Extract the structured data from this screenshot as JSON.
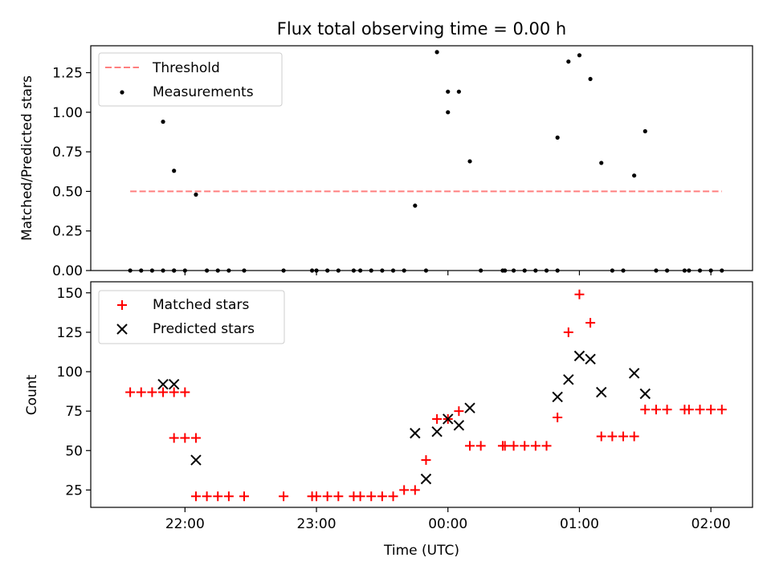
{
  "chart_data": [
    {
      "type": "scatter",
      "title": "Flux total observing time = 0.00 h",
      "xlabel": "",
      "ylabel": "Matched/Predicted stars",
      "ylim": [
        0,
        1.42
      ],
      "x_range": [
        "21:17",
        "02:19"
      ],
      "yticks": [
        "0.00",
        "0.25",
        "0.50",
        "0.75",
        "1.00",
        "1.25"
      ],
      "xticks": [
        "22:00",
        "23:00",
        "00:00",
        "01:00",
        "02:00"
      ],
      "x_ticks_at": [
        "22:00",
        "23:00",
        "00:00",
        "01:00",
        "02:00"
      ],
      "xtick_labels_visible": false,
      "grid": false,
      "legend_position": "upper left",
      "legend": [
        {
          "label": "Threshold",
          "style": "dashed line",
          "color": "#ff7f7f"
        },
        {
          "label": "Measurements",
          "style": "dot",
          "color": "#000000"
        }
      ],
      "series": [
        {
          "name": "Threshold",
          "kind": "line",
          "color": "#ff7f7f",
          "x": [
            "21:35",
            "02:05"
          ],
          "values": [
            0.5,
            0.5
          ]
        },
        {
          "name": "Measurements",
          "kind": "scatter",
          "color": "#000000",
          "points": [
            [
              "21:35",
              0.0
            ],
            [
              "21:40",
              0.0
            ],
            [
              "21:45",
              0.0
            ],
            [
              "21:50",
              0.0
            ],
            [
              "21:55",
              0.0
            ],
            [
              "21:50",
              0.94
            ],
            [
              "21:55",
              0.63
            ],
            [
              "21:55",
              0.0
            ],
            [
              "22:00",
              0.0
            ],
            [
              "22:05",
              0.48
            ],
            [
              "22:10",
              0.0
            ],
            [
              "22:15",
              0.0
            ],
            [
              "22:20",
              0.0
            ],
            [
              "22:27",
              0.0
            ],
            [
              "22:45",
              0.0
            ],
            [
              "22:58",
              0.0
            ],
            [
              "23:00",
              0.0
            ],
            [
              "23:05",
              0.0
            ],
            [
              "23:10",
              0.0
            ],
            [
              "23:17",
              0.0
            ],
            [
              "23:20",
              0.0
            ],
            [
              "23:25",
              0.0
            ],
            [
              "23:30",
              0.0
            ],
            [
              "23:35",
              0.0
            ],
            [
              "23:40",
              0.0
            ],
            [
              "23:45",
              0.41
            ],
            [
              "23:50",
              0.0
            ],
            [
              "23:55",
              1.38
            ],
            [
              "00:00",
              1.13
            ],
            [
              "00:00",
              1.0
            ],
            [
              "00:05",
              1.13
            ],
            [
              "00:10",
              0.69
            ],
            [
              "00:15",
              0.0
            ],
            [
              "00:25",
              0.0
            ],
            [
              "00:26",
              0.0
            ],
            [
              "00:30",
              0.0
            ],
            [
              "00:35",
              0.0
            ],
            [
              "00:40",
              0.0
            ],
            [
              "00:45",
              0.0
            ],
            [
              "00:50",
              0.0
            ],
            [
              "00:50",
              0.84
            ],
            [
              "00:55",
              1.32
            ],
            [
              "01:00",
              1.36
            ],
            [
              "01:05",
              1.21
            ],
            [
              "01:10",
              0.68
            ],
            [
              "01:15",
              0.0
            ],
            [
              "01:20",
              0.0
            ],
            [
              "01:25",
              0.6
            ],
            [
              "01:30",
              0.88
            ],
            [
              "01:35",
              0.0
            ],
            [
              "01:40",
              0.0
            ],
            [
              "01:48",
              0.0
            ],
            [
              "01:50",
              0.0
            ],
            [
              "01:55",
              0.0
            ],
            [
              "02:00",
              0.0
            ],
            [
              "02:05",
              0.0
            ]
          ]
        }
      ]
    },
    {
      "type": "scatter",
      "title": "",
      "xlabel": "Time (UTC)",
      "ylabel": "Count",
      "ylim": [
        14,
        157
      ],
      "x_range": [
        "21:17",
        "02:19"
      ],
      "yticks": [
        "25",
        "50",
        "75",
        "100",
        "125",
        "150"
      ],
      "xticks": [
        "22:00",
        "23:00",
        "00:00",
        "01:00",
        "02:00"
      ],
      "x_ticks_at": [
        "22:00",
        "23:00",
        "00:00",
        "01:00",
        "02:00"
      ],
      "grid": false,
      "legend_position": "upper left",
      "legend": [
        {
          "label": "Matched stars",
          "style": "plus",
          "color": "#ff0000"
        },
        {
          "label": "Predicted stars",
          "style": "x",
          "color": "#000000"
        }
      ],
      "series": [
        {
          "name": "Matched stars",
          "kind": "scatter",
          "marker": "plus",
          "color": "#ff0000",
          "points": [
            [
              "21:35",
              87
            ],
            [
              "21:40",
              87
            ],
            [
              "21:45",
              87
            ],
            [
              "21:50",
              87
            ],
            [
              "21:55",
              87
            ],
            [
              "22:00",
              87
            ],
            [
              "21:55",
              58
            ],
            [
              "22:00",
              58
            ],
            [
              "22:05",
              58
            ],
            [
              "22:05",
              21
            ],
            [
              "22:10",
              21
            ],
            [
              "22:15",
              21
            ],
            [
              "22:20",
              21
            ],
            [
              "22:27",
              21
            ],
            [
              "22:45",
              21
            ],
            [
              "22:58",
              21
            ],
            [
              "23:00",
              21
            ],
            [
              "23:05",
              21
            ],
            [
              "23:10",
              21
            ],
            [
              "23:17",
              21
            ],
            [
              "23:20",
              21
            ],
            [
              "23:25",
              21
            ],
            [
              "23:30",
              21
            ],
            [
              "23:35",
              21
            ],
            [
              "23:40",
              25
            ],
            [
              "23:45",
              25
            ],
            [
              "23:50",
              44
            ],
            [
              "23:55",
              70
            ],
            [
              "00:00",
              70
            ],
            [
              "00:05",
              75
            ],
            [
              "00:10",
              53
            ],
            [
              "00:15",
              53
            ],
            [
              "00:25",
              53
            ],
            [
              "00:26",
              53
            ],
            [
              "00:30",
              53
            ],
            [
              "00:35",
              53
            ],
            [
              "00:40",
              53
            ],
            [
              "00:45",
              53
            ],
            [
              "00:50",
              71
            ],
            [
              "00:55",
              125
            ],
            [
              "01:00",
              149
            ],
            [
              "01:05",
              131
            ],
            [
              "01:10",
              59
            ],
            [
              "01:15",
              59
            ],
            [
              "01:20",
              59
            ],
            [
              "01:25",
              59
            ],
            [
              "01:30",
              76
            ],
            [
              "01:35",
              76
            ],
            [
              "01:40",
              76
            ],
            [
              "01:48",
              76
            ],
            [
              "01:50",
              76
            ],
            [
              "01:55",
              76
            ],
            [
              "02:00",
              76
            ],
            [
              "02:05",
              76
            ]
          ]
        },
        {
          "name": "Predicted stars",
          "kind": "scatter",
          "marker": "x",
          "color": "#000000",
          "points": [
            [
              "21:50",
              92
            ],
            [
              "21:55",
              92
            ],
            [
              "22:05",
              44
            ],
            [
              "23:45",
              61
            ],
            [
              "23:50",
              32
            ],
            [
              "23:55",
              62
            ],
            [
              "00:00",
              70
            ],
            [
              "00:05",
              66
            ],
            [
              "00:10",
              77
            ],
            [
              "00:50",
              84
            ],
            [
              "00:55",
              95
            ],
            [
              "01:00",
              110
            ],
            [
              "01:05",
              108
            ],
            [
              "01:10",
              87
            ],
            [
              "01:25",
              99
            ],
            [
              "01:30",
              86
            ]
          ]
        }
      ]
    }
  ]
}
